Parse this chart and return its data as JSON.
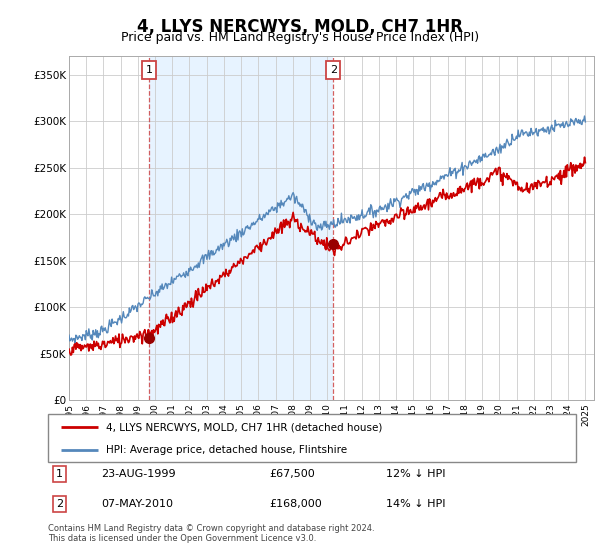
{
  "title": "4, LLYS NERCWYS, MOLD, CH7 1HR",
  "subtitle": "Price paid vs. HM Land Registry's House Price Index (HPI)",
  "ylabel_ticks": [
    "£0",
    "£50K",
    "£100K",
    "£150K",
    "£200K",
    "£250K",
    "£300K",
    "£350K"
  ],
  "ytick_values": [
    0,
    50000,
    100000,
    150000,
    200000,
    250000,
    300000,
    350000
  ],
  "ylim": [
    0,
    370000
  ],
  "xlim_start": 1995.0,
  "xlim_end": 2025.5,
  "legend_line1": "4, LLYS NERCWYS, MOLD, CH7 1HR (detached house)",
  "legend_line2": "HPI: Average price, detached house, Flintshire",
  "sale1_date": "23-AUG-1999",
  "sale1_price": 67500,
  "sale1_label": "12% ↓ HPI",
  "sale1_year": 1999.65,
  "sale2_date": "07-MAY-2010",
  "sale2_price": 168000,
  "sale2_label": "14% ↓ HPI",
  "sale2_year": 2010.35,
  "footer": "Contains HM Land Registry data © Crown copyright and database right 2024.\nThis data is licensed under the Open Government Licence v3.0.",
  "red_color": "#cc0000",
  "blue_color": "#5588bb",
  "shade_color": "#ddeeff",
  "marker_color": "#990000",
  "dashed_color": "#cc4444",
  "background": "#ffffff",
  "grid_color": "#cccccc",
  "title_fontsize": 12,
  "subtitle_fontsize": 9
}
